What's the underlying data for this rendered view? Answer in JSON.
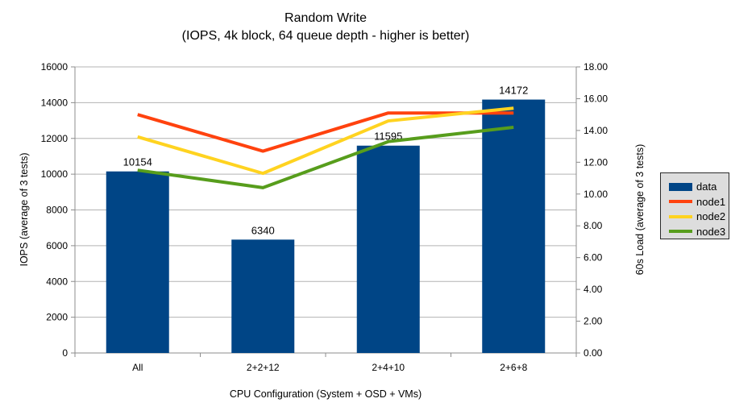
{
  "chart_data": {
    "type": "bar+line combo",
    "title": "Random Write",
    "subtitle": "(IOPS, 4k block, 64 queue depth - higher is better)",
    "xlabel": "CPU Configuration (System + OSD + VMs)",
    "ylabel_left": "IOPS (average of 3 tests)",
    "ylabel_right": "60s Load (average of 3 tests)",
    "categories": [
      "All",
      "2+2+12",
      "2+4+10",
      "2+6+8"
    ],
    "bar_series": {
      "name": "data",
      "axis": "left",
      "color": "#004586",
      "values": [
        10154,
        6340,
        11595,
        14172
      ],
      "value_labels": [
        "10154",
        "6340",
        "11595",
        "14172"
      ]
    },
    "line_series": [
      {
        "name": "node1",
        "axis": "right",
        "color": "#FF420E",
        "values": [
          15.0,
          12.7,
          15.1,
          15.1
        ]
      },
      {
        "name": "node2",
        "axis": "right",
        "color": "#FFD320",
        "values": [
          13.6,
          11.3,
          14.6,
          15.4
        ]
      },
      {
        "name": "node3",
        "axis": "right",
        "color": "#579D1C",
        "values": [
          11.5,
          10.4,
          13.3,
          14.2
        ]
      }
    ],
    "left_axis": {
      "min": 0,
      "max": 16000,
      "step": 2000,
      "tick_labels": [
        "0",
        "2000",
        "4000",
        "6000",
        "8000",
        "10000",
        "12000",
        "14000",
        "16000"
      ]
    },
    "right_axis": {
      "min": 0,
      "max": 18,
      "step": 2,
      "tick_labels": [
        "0.00",
        "2.00",
        "4.00",
        "6.00",
        "8.00",
        "10.00",
        "12.00",
        "14.00",
        "16.00",
        "18.00"
      ]
    },
    "legend": {
      "position": "right",
      "background": "#DDDDDD",
      "border_color": "#2B2B2B",
      "items": [
        {
          "label": "data",
          "color": "#004586",
          "marker": "rect"
        },
        {
          "label": "node1",
          "color": "#FF420E",
          "marker": "line"
        },
        {
          "label": "node2",
          "color": "#FFD320",
          "marker": "line"
        },
        {
          "label": "node3",
          "color": "#579D1C",
          "marker": "line"
        }
      ]
    },
    "grid": {
      "horizontal": true,
      "color": "#B3B3B3"
    },
    "axis_color": "#8C8C8C",
    "text_color": "#000000",
    "background": "#FFFFFF"
  }
}
